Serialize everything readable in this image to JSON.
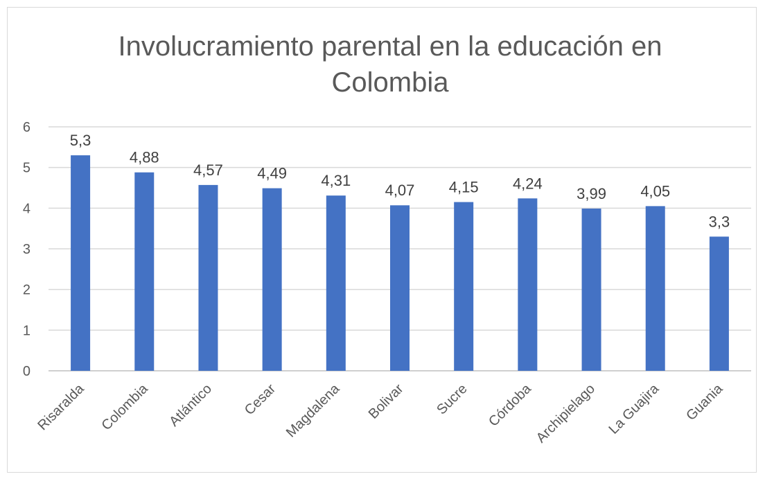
{
  "chart_data": {
    "type": "bar",
    "title_lines": [
      "Involucramiento parental en la educación en",
      "Colombia"
    ],
    "categories": [
      "Risaralda",
      "Colombia",
      "Atlántico",
      "Cesar",
      "Magdalena",
      "Bolivar",
      "Sucre",
      "Córdoba",
      "Archipielago",
      "La Guajira",
      "Guania"
    ],
    "values": [
      5.3,
      4.88,
      4.57,
      4.49,
      4.31,
      4.07,
      4.15,
      4.24,
      3.99,
      4.05,
      3.3
    ],
    "value_labels": [
      "5,3",
      "4,88",
      "4,57",
      "4,49",
      "4,31",
      "4,07",
      "4,15",
      "4,24",
      "3,99",
      "4,05",
      "3,3"
    ],
    "ylim": [
      0,
      6
    ],
    "yticks": [
      "0",
      "1",
      "2",
      "3",
      "4",
      "5",
      "6"
    ],
    "grid": true,
    "legend": "none",
    "bar_color": "#4472c4"
  }
}
